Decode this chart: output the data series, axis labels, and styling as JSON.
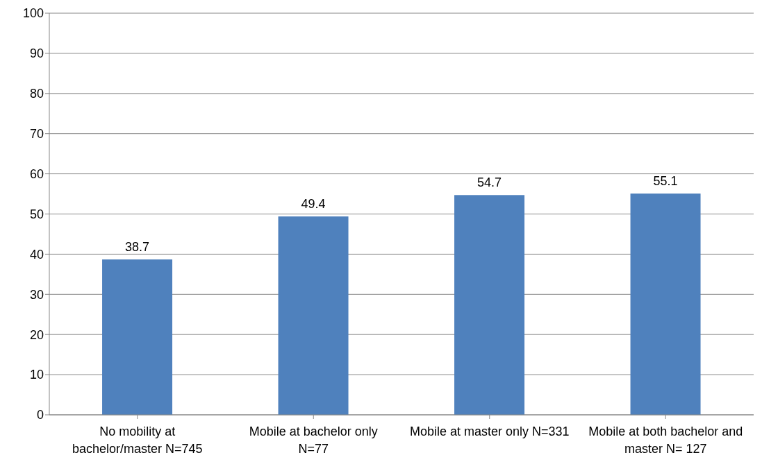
{
  "chart_data": {
    "type": "bar",
    "categories": [
      "No mobility at bachelor/master N=745",
      "Mobile at bachelor only N=77",
      "Mobile at master only N=331",
      "Mobile at both bachelor and master N= 127"
    ],
    "values": [
      38.7,
      49.4,
      54.7,
      55.1
    ],
    "color": "#4f81bd",
    "ylim": [
      0,
      100
    ],
    "yticks": [
      0,
      10,
      20,
      30,
      40,
      50,
      60,
      70,
      80,
      90,
      100
    ],
    "grid": "y",
    "data_labels": true
  }
}
